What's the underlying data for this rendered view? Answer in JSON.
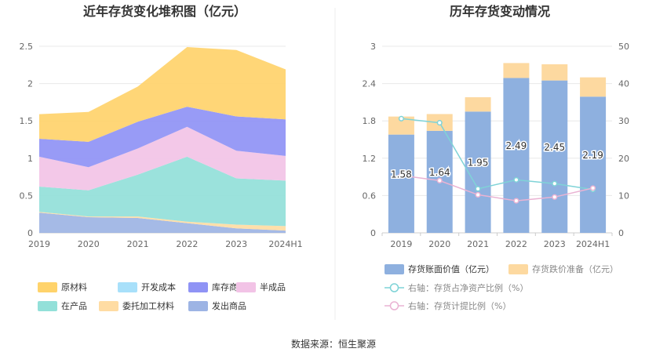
{
  "source_text": "数据来源：恒生聚源",
  "colors": {
    "原材料": "#ffd36b",
    "开发成本": "#a8e0fa",
    "库存商品": "#8f93f5",
    "半成品": "#f2c3e6",
    "在产品": "#93e0d9",
    "委托加工材料": "#ffdca3",
    "发出商品": "#9db4e4",
    "inventory_bar": "#8eb0df",
    "provision_bar": "#fdd9a0",
    "ratio_line": "#7fd3d7",
    "provision_line": "#eab3d3"
  },
  "chart_data": [
    {
      "type": "area",
      "stacked": true,
      "title": "近年存货变化堆积图（亿元）",
      "categories": [
        "2019",
        "2020",
        "2021",
        "2022",
        "2023",
        "2024H1"
      ],
      "ylim": [
        0,
        2.5
      ],
      "yticks": [
        "0",
        "0.5",
        "1",
        "1.5",
        "2",
        "2.5"
      ],
      "grid": true,
      "legend_position": "bottom",
      "series": [
        {
          "name": "发出商品",
          "values": [
            0.27,
            0.21,
            0.2,
            0.13,
            0.06,
            0.03
          ]
        },
        {
          "name": "委托加工材料",
          "values": [
            0.01,
            0.01,
            0.02,
            0.02,
            0.05,
            0.06
          ]
        },
        {
          "name": "开发成本",
          "values": [
            0,
            0,
            0,
            0,
            0,
            0
          ]
        },
        {
          "name": "在产品",
          "values": [
            0.34,
            0.35,
            0.56,
            0.87,
            0.62,
            0.61
          ]
        },
        {
          "name": "半成品",
          "values": [
            0.4,
            0.31,
            0.35,
            0.4,
            0.37,
            0.33
          ]
        },
        {
          "name": "库存商品",
          "values": [
            0.24,
            0.34,
            0.36,
            0.27,
            0.46,
            0.49
          ]
        },
        {
          "name": "原材料",
          "values": [
            0.33,
            0.4,
            0.47,
            0.8,
            0.89,
            0.67
          ]
        }
      ],
      "legend": [
        "原材料",
        "开发成本",
        "库存商品",
        "半成品",
        "在产品",
        "委托加工材料",
        "发出商品"
      ]
    },
    {
      "type": "bar",
      "stacked": true,
      "title": "历年存货变动情况",
      "categories": [
        "2019",
        "2020",
        "2021",
        "2022",
        "2023",
        "2024H1"
      ],
      "ylim": [
        0,
        3
      ],
      "yticks": [
        "0",
        "0.6",
        "1.2",
        "1.8",
        "2.4",
        "3"
      ],
      "y2lim": [
        0,
        50
      ],
      "y2ticks": [
        "0",
        "10",
        "20",
        "30",
        "40",
        "50"
      ],
      "grid": true,
      "legend_position": "bottom",
      "series": [
        {
          "name": "存货账面价值（亿元）",
          "type": "bar",
          "values": [
            1.58,
            1.64,
            1.95,
            2.49,
            2.45,
            2.19
          ],
          "labels": [
            "1.58",
            "1.64",
            "1.95",
            "2.49",
            "2.45",
            "2.19"
          ]
        },
        {
          "name": "存货跌价准备（亿元）",
          "type": "bar",
          "values": [
            0.29,
            0.27,
            0.23,
            0.24,
            0.26,
            0.31
          ]
        },
        {
          "name": "右轴：存货占净资产比例（%）",
          "type": "line",
          "axis": "right",
          "values": [
            30.6,
            29.5,
            11.8,
            14.2,
            13.2,
            11.6
          ]
        },
        {
          "name": "右轴：存货计提比例（%）",
          "type": "line",
          "axis": "right",
          "values": [
            15.4,
            14.0,
            10.2,
            8.6,
            9.6,
            12.0
          ]
        }
      ]
    }
  ]
}
